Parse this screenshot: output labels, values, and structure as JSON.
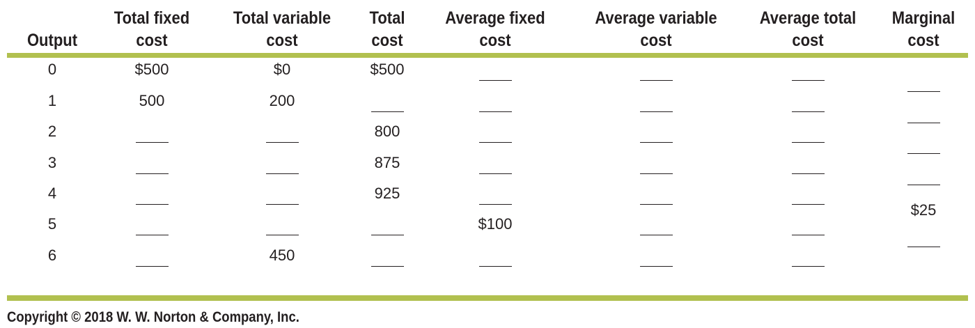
{
  "colors": {
    "rule": "#b1c04f",
    "text": "#231f20"
  },
  "columns": [
    {
      "key": "output",
      "line1": "",
      "line2": "Output"
    },
    {
      "key": "tfc",
      "line1": "Total fixed",
      "line2": "cost"
    },
    {
      "key": "tvc",
      "line1": "Total variable",
      "line2": "cost"
    },
    {
      "key": "tc",
      "line1": "Total",
      "line2": "cost"
    },
    {
      "key": "afc",
      "line1": "Average fixed",
      "line2": "cost"
    },
    {
      "key": "avc",
      "line1": "Average variable",
      "line2": "cost"
    },
    {
      "key": "atc",
      "line1": "Average total",
      "line2": "cost"
    },
    {
      "key": "mc",
      "line1": "Marginal",
      "line2": "cost"
    }
  ],
  "rows": [
    {
      "output": "0",
      "tfc": "$500",
      "tvc": "$0",
      "tc": "$500",
      "afc": "",
      "avc": "",
      "atc": ""
    },
    {
      "output": "1",
      "tfc": "500",
      "tvc": "200",
      "tc": "",
      "afc": "",
      "avc": "",
      "atc": ""
    },
    {
      "output": "2",
      "tfc": "",
      "tvc": "",
      "tc": "800",
      "afc": "",
      "avc": "",
      "atc": ""
    },
    {
      "output": "3",
      "tfc": "",
      "tvc": "",
      "tc": "875",
      "afc": "",
      "avc": "",
      "atc": ""
    },
    {
      "output": "4",
      "tfc": "",
      "tvc": "",
      "tc": "925",
      "afc": "",
      "avc": "",
      "atc": ""
    },
    {
      "output": "5",
      "tfc": "",
      "tvc": "",
      "tc": "",
      "afc": "$100",
      "avc": "",
      "atc": ""
    },
    {
      "output": "6",
      "tfc": "",
      "tvc": "450",
      "tc": "",
      "afc": "",
      "avc": "",
      "atc": ""
    }
  ],
  "marginal_cost": [
    "",
    "",
    "",
    "",
    "$25",
    ""
  ],
  "copyright": "Copyright © 2018 W. W. Norton & Company, Inc."
}
